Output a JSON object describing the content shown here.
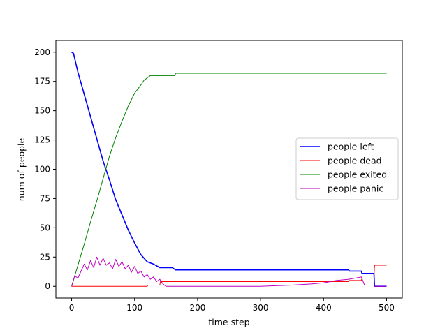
{
  "chart_data": {
    "type": "line",
    "xlabel": "time step",
    "ylabel": "num of people",
    "xlim": [
      -25,
      525
    ],
    "ylim": [
      -10,
      210
    ],
    "xticks": [
      0,
      100,
      200,
      300,
      400,
      500
    ],
    "yticks": [
      0,
      25,
      50,
      75,
      100,
      125,
      150,
      175,
      200
    ],
    "legend_position": "center-right",
    "series": [
      {
        "name": "people left",
        "color": "#0000ff",
        "x": [
          0,
          3,
          10,
          20,
          30,
          40,
          50,
          60,
          70,
          80,
          90,
          100,
          110,
          120,
          130,
          140,
          150,
          160,
          165,
          200,
          300,
          400,
          440,
          441,
          460,
          461,
          480,
          481,
          500
        ],
        "y": [
          200,
          199,
          183,
          164,
          145,
          126,
          107,
          91,
          74,
          61,
          48,
          37,
          27,
          21,
          19,
          16,
          16,
          16,
          14,
          14,
          14,
          14,
          14,
          13,
          13,
          11,
          11,
          0,
          0
        ]
      },
      {
        "name": "people dead",
        "color": "#ff0000",
        "x": [
          0,
          120,
          121,
          140,
          141,
          440,
          441,
          460,
          461,
          480,
          481,
          500
        ],
        "y": [
          0,
          0,
          1,
          1,
          4,
          4,
          5,
          5,
          7,
          7,
          18,
          18
        ]
      },
      {
        "name": "people exited",
        "color": "#008000",
        "x": [
          0,
          10,
          20,
          30,
          40,
          50,
          60,
          70,
          80,
          90,
          100,
          110,
          115,
          120,
          125,
          130,
          164,
          165,
          500
        ],
        "y": [
          0,
          18,
          36,
          55,
          73,
          92,
          111,
          127,
          141,
          154,
          165,
          172,
          176,
          178,
          180,
          180,
          180,
          182,
          182
        ]
      },
      {
        "name": "people panic",
        "color": "#bf00bf",
        "x": [
          0,
          5,
          10,
          15,
          20,
          25,
          30,
          35,
          40,
          45,
          50,
          55,
          60,
          65,
          70,
          75,
          80,
          85,
          90,
          95,
          100,
          105,
          110,
          115,
          120,
          125,
          130,
          135,
          140,
          145,
          150,
          200,
          250,
          300,
          350,
          380,
          400,
          420,
          440,
          450,
          460,
          465,
          470,
          480,
          481,
          500
        ],
        "y": [
          0,
          9,
          7,
          13,
          19,
          14,
          22,
          16,
          25,
          18,
          24,
          18,
          20,
          15,
          23,
          17,
          21,
          15,
          18,
          12,
          17,
          11,
          13,
          8,
          10,
          6,
          8,
          4,
          6,
          2,
          0,
          0,
          0,
          0,
          1,
          2,
          3,
          5,
          6,
          7,
          8,
          1,
          1,
          1,
          0,
          0
        ]
      }
    ]
  }
}
